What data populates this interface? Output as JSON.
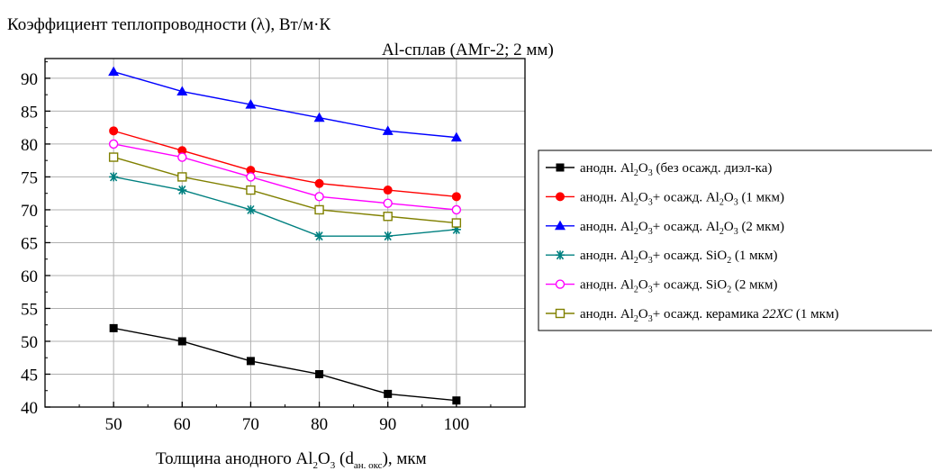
{
  "chart_data": {
    "type": "line",
    "title": "Коэффициент теплопроводности (λ), Вт/м·К",
    "subtitle": "Al-сплав (АМг-2; 2 мм)",
    "xlabel": {
      "before": "Толщина анодного Al",
      "sub1": "2",
      "mid1": "O",
      "sub2": "3",
      "mid2": " (d",
      "sub3": "ан. окс",
      "after": "), мкм"
    },
    "x": [
      50,
      60,
      70,
      80,
      90,
      100
    ],
    "xlim": [
      40,
      110
    ],
    "ylim": [
      40,
      93
    ],
    "xticks": [
      50,
      60,
      70,
      80,
      90,
      100
    ],
    "yticks": [
      40,
      45,
      50,
      55,
      60,
      65,
      70,
      75,
      80,
      85,
      90
    ],
    "grid": true,
    "legend_position": "right",
    "series": [
      {
        "name": "анодн. Al2O3 (без осажд. диэл-ка)",
        "legend": [
          {
            "t": "анодн. Al",
            "s": false
          },
          {
            "t": "2",
            "s": true
          },
          {
            "t": "O",
            "s": false
          },
          {
            "t": "3",
            "s": true
          },
          {
            "t": " (без осажд. диэл-ка)",
            "s": false
          }
        ],
        "color": "#000000",
        "marker": "square-filled",
        "values": [
          52,
          50,
          47,
          45,
          42,
          41
        ]
      },
      {
        "name": "анодн. Al2O3+ осажд. Al2O3 (1 мкм)",
        "legend": [
          {
            "t": "анодн. Al",
            "s": false
          },
          {
            "t": "2",
            "s": true
          },
          {
            "t": "O",
            "s": false
          },
          {
            "t": "3",
            "s": true
          },
          {
            "t": "+ осажд. Al",
            "s": false
          },
          {
            "t": "2",
            "s": true
          },
          {
            "t": "O",
            "s": false
          },
          {
            "t": "3",
            "s": true
          },
          {
            "t": " (1 мкм)",
            "s": false
          }
        ],
        "color": "#ff0000",
        "marker": "circle-filled",
        "values": [
          82,
          79,
          76,
          74,
          73,
          72
        ]
      },
      {
        "name": "анодн. Al2O3+ осажд. Al2O3 (2 мкм)",
        "legend": [
          {
            "t": "анодн. Al",
            "s": false
          },
          {
            "t": "2",
            "s": true
          },
          {
            "t": "O",
            "s": false
          },
          {
            "t": "3",
            "s": true
          },
          {
            "t": "+ осажд. Al",
            "s": false
          },
          {
            "t": "2",
            "s": true
          },
          {
            "t": "O",
            "s": false
          },
          {
            "t": "3",
            "s": true
          },
          {
            "t": " (2 мкм)",
            "s": false
          }
        ],
        "color": "#0000ff",
        "marker": "triangle-filled",
        "values": [
          91,
          88,
          86,
          84,
          82,
          81
        ]
      },
      {
        "name": "анодн. Al2O3+ осажд. SiO2 (1 мкм)",
        "legend": [
          {
            "t": "анодн. Al",
            "s": false
          },
          {
            "t": "2",
            "s": true
          },
          {
            "t": "O",
            "s": false
          },
          {
            "t": "3",
            "s": true
          },
          {
            "t": "+ осажд. SiO",
            "s": false
          },
          {
            "t": "2",
            "s": true
          },
          {
            "t": " (1 мкм)",
            "s": false
          }
        ],
        "color": "#008080",
        "marker": "asterisk",
        "values": [
          75,
          73,
          70,
          66,
          66,
          67
        ]
      },
      {
        "name": "анодн. Al2O3+ осажд. SiO2 (2 мкм)",
        "legend": [
          {
            "t": "анодн. Al",
            "s": false
          },
          {
            "t": "2",
            "s": true
          },
          {
            "t": "O",
            "s": false
          },
          {
            "t": "3",
            "s": true
          },
          {
            "t": "+ осажд. SiO",
            "s": false
          },
          {
            "t": "2",
            "s": true
          },
          {
            "t": " (2 мкм)",
            "s": false
          }
        ],
        "color": "#ff00ff",
        "marker": "circle-open",
        "values": [
          80,
          78,
          75,
          72,
          71,
          70
        ]
      },
      {
        "name": "анодн. Al2O3+ осажд. керамика 22ХС (1 мкм)",
        "legend": [
          {
            "t": "анодн. Al",
            "s": false
          },
          {
            "t": "2",
            "s": true
          },
          {
            "t": "O",
            "s": false
          },
          {
            "t": "3",
            "s": true
          },
          {
            "t": "+ осажд. керамика ",
            "s": false
          },
          {
            "t": "22ХС",
            "s": false,
            "i": true
          },
          {
            "t": " (1 мкм)",
            "s": false
          }
        ],
        "color": "#808000",
        "marker": "square-open",
        "values": [
          78,
          75,
          73,
          70,
          69,
          68
        ]
      }
    ]
  }
}
